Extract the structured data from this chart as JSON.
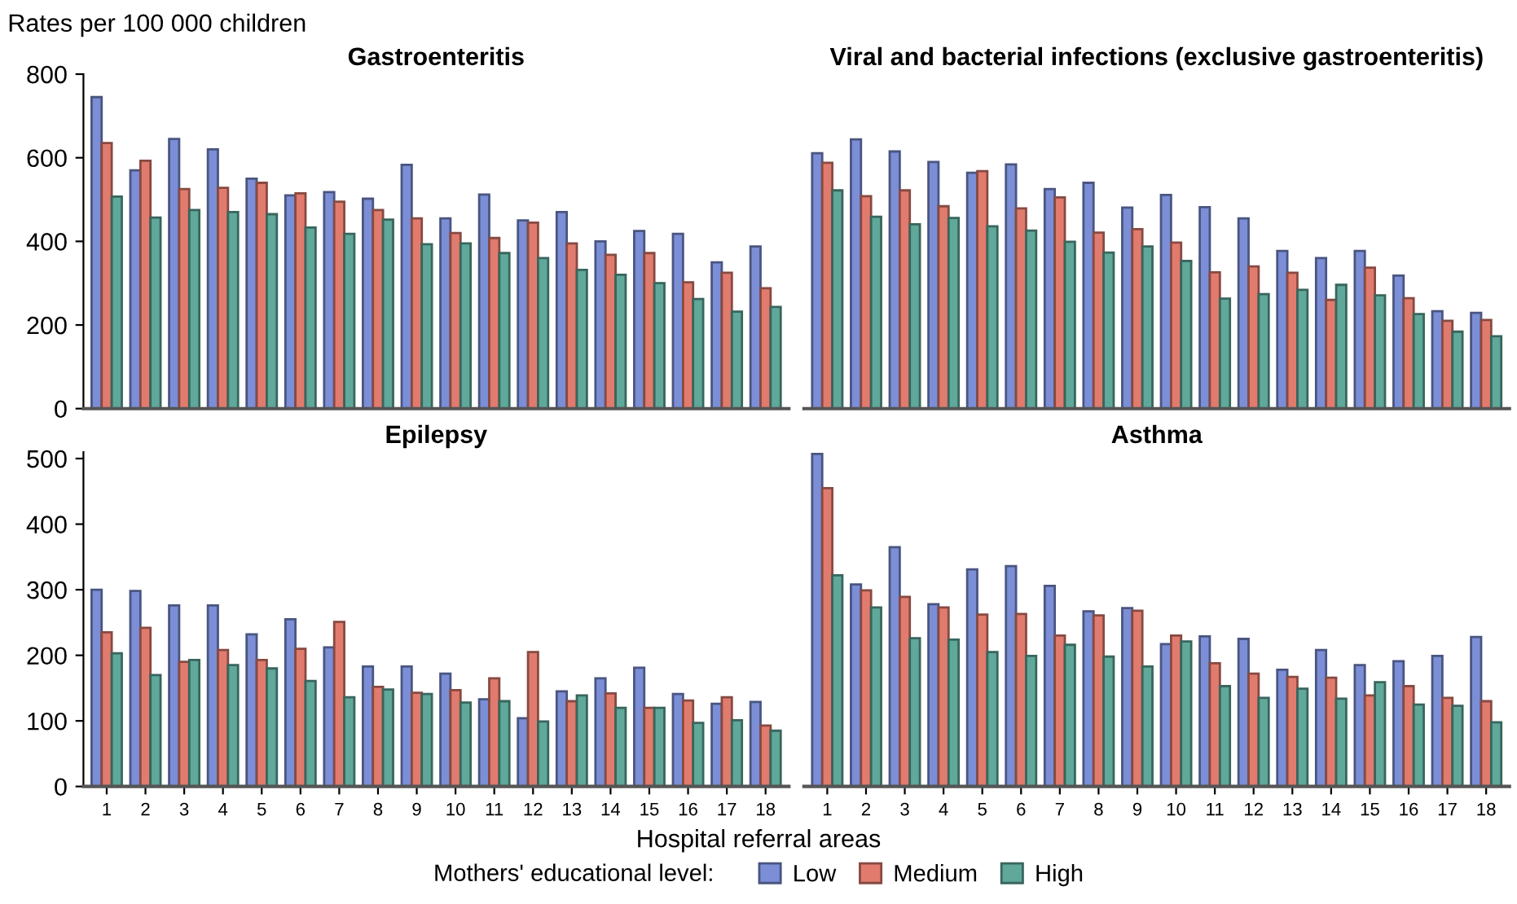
{
  "chart_data": [
    {
      "type": "bar",
      "title": "Gastroenteritis",
      "ylabel": "Rates per 100 000 children",
      "categories": [
        "1",
        "2",
        "3",
        "4",
        "5",
        "6",
        "7",
        "8",
        "9",
        "10",
        "11",
        "12",
        "13",
        "14",
        "15",
        "16",
        "17",
        "18"
      ],
      "ylim": [
        0,
        800
      ],
      "yticks": [
        0,
        200,
        400,
        600,
        800
      ],
      "tick_labels": "y",
      "grid": false,
      "legend": false,
      "series": [
        {
          "color": "#7b8ed6",
          "values": [
            745,
            570,
            645,
            620,
            550,
            510,
            518,
            502,
            583,
            455,
            512,
            450,
            470,
            400,
            425,
            418,
            350,
            388
          ]
        },
        {
          "color": "#e07b6e",
          "values": [
            635,
            593,
            525,
            528,
            540,
            515,
            495,
            475,
            455,
            420,
            408,
            445,
            395,
            368,
            372,
            302,
            325,
            288
          ]
        },
        {
          "color": "#5fa89a",
          "values": [
            507,
            457,
            475,
            470,
            465,
            433,
            418,
            452,
            393,
            395,
            372,
            360,
            332,
            320,
            300,
            262,
            232,
            243
          ]
        }
      ]
    },
    {
      "type": "bar",
      "title": "Viral and bacterial infections (exclusive gastroenteritis)",
      "categories": [
        "1",
        "2",
        "3",
        "4",
        "5",
        "6",
        "7",
        "8",
        "9",
        "10",
        "11",
        "12",
        "13",
        "14",
        "15",
        "16",
        "17",
        "18"
      ],
      "ylim": [
        0,
        800
      ],
      "yticks": [
        0,
        200,
        400,
        600,
        800
      ],
      "tick_labels": false,
      "grid": false,
      "legend": false,
      "series": [
        {
          "color": "#7b8ed6",
          "values": [
            611,
            644,
            615,
            590,
            564,
            584,
            525,
            540,
            481,
            511,
            482,
            455,
            377,
            360,
            377,
            318,
            233,
            229
          ]
        },
        {
          "color": "#e07b6e",
          "values": [
            588,
            508,
            522,
            484,
            568,
            479,
            505,
            421,
            429,
            397,
            326,
            340,
            325,
            260,
            337,
            264,
            210,
            212
          ]
        },
        {
          "color": "#5fa89a",
          "values": [
            522,
            459,
            441,
            456,
            436,
            426,
            399,
            373,
            388,
            353,
            263,
            274,
            284,
            296,
            271,
            226,
            184,
            173
          ]
        }
      ]
    },
    {
      "type": "bar",
      "title": "Epilepsy",
      "xlabel": "Hospital referral areas",
      "legend_title": "Mothers' educational level:",
      "categories": [
        "1",
        "2",
        "3",
        "4",
        "5",
        "6",
        "7",
        "8",
        "9",
        "10",
        "11",
        "12",
        "13",
        "14",
        "15",
        "16",
        "17",
        "18"
      ],
      "ylim": [
        0,
        510
      ],
      "yticks": [
        0,
        100,
        200,
        300,
        400,
        500
      ],
      "grid": false,
      "legend": "bottom",
      "series": [
        {
          "name": "Low",
          "color": "#7b8ed6",
          "values": [
            300,
            298,
            276,
            276,
            232,
            255,
            212,
            183,
            183,
            172,
            133,
            104,
            145,
            165,
            181,
            141,
            126,
            129
          ]
        },
        {
          "name": "Medium",
          "color": "#e07b6e",
          "values": [
            235,
            242,
            190,
            208,
            193,
            210,
            251,
            152,
            143,
            147,
            165,
            205,
            130,
            142,
            120,
            131,
            136,
            93
          ]
        },
        {
          "name": "High",
          "color": "#5fa89a",
          "values": [
            203,
            170,
            193,
            185,
            180,
            161,
            136,
            148,
            141,
            128,
            130,
            99,
            139,
            120,
            120,
            97,
            101,
            85
          ]
        }
      ]
    },
    {
      "type": "bar",
      "title": "Asthma",
      "categories": [
        "1",
        "2",
        "3",
        "4",
        "5",
        "6",
        "7",
        "8",
        "9",
        "10",
        "11",
        "12",
        "13",
        "14",
        "15",
        "16",
        "17",
        "18"
      ],
      "ylim": [
        0,
        510
      ],
      "yticks": [
        0,
        100,
        200,
        300,
        400,
        500
      ],
      "tick_labels": "x",
      "grid": false,
      "legend": false,
      "series": [
        {
          "color": "#7b8ed6",
          "values": [
            507,
            308,
            365,
            278,
            331,
            336,
            306,
            267,
            272,
            217,
            229,
            225,
            178,
            208,
            185,
            191,
            199,
            228
          ]
        },
        {
          "color": "#e07b6e",
          "values": [
            455,
            299,
            289,
            273,
            262,
            263,
            230,
            261,
            268,
            230,
            188,
            172,
            167,
            166,
            139,
            153,
            135,
            130
          ]
        },
        {
          "color": "#5fa89a",
          "values": [
            322,
            273,
            226,
            224,
            205,
            199,
            216,
            198,
            183,
            221,
            153,
            135,
            149,
            134,
            159,
            125,
            123,
            98
          ]
        }
      ]
    }
  ]
}
